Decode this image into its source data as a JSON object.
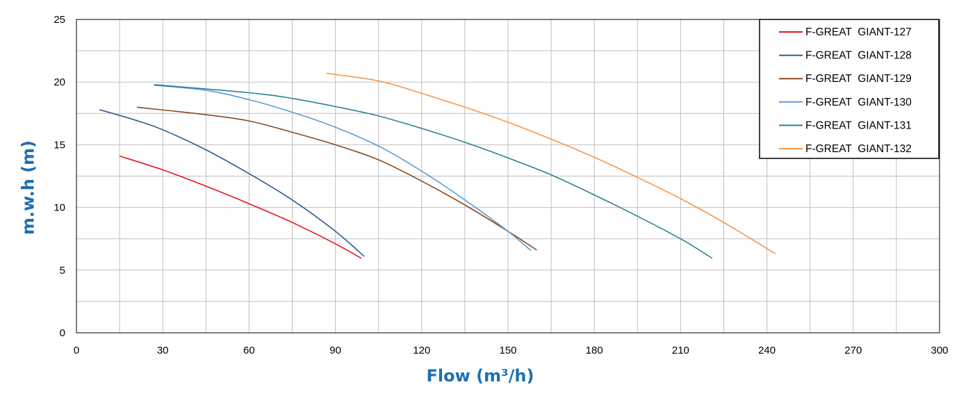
{
  "chart_data": {
    "type": "line",
    "title": "",
    "xlabel": "Flow (m³/h)",
    "ylabel": "m.w.h (m)",
    "xlim": [
      0,
      300
    ],
    "ylim": [
      0,
      25
    ],
    "x_ticks": [
      0,
      30,
      60,
      90,
      120,
      150,
      180,
      210,
      240,
      270,
      300
    ],
    "y_ticks": [
      0,
      5,
      10,
      15,
      20,
      25
    ],
    "x_minor_step": 15,
    "y_minor_step": 2.5,
    "grid": true,
    "legend_position": "top-right",
    "axis_title_color": "#1F6FB2",
    "series": [
      {
        "name": "F-GREAT  GIANT-127",
        "color": "#E8141B",
        "points": [
          [
            15,
            14.1
          ],
          [
            30,
            13.0
          ],
          [
            45,
            11.7
          ],
          [
            60,
            10.3
          ],
          [
            75,
            8.8
          ],
          [
            90,
            7.1
          ],
          [
            99,
            5.95
          ]
        ]
      },
      {
        "name": "F-GREAT  GIANT-128",
        "color": "#2F5A8C",
        "points": [
          [
            8,
            17.8
          ],
          [
            20,
            17.0
          ],
          [
            30,
            16.2
          ],
          [
            45,
            14.6
          ],
          [
            60,
            12.7
          ],
          [
            75,
            10.6
          ],
          [
            90,
            8.1
          ],
          [
            100,
            6.1
          ]
        ]
      },
      {
        "name": "F-GREAT  GIANT-129",
        "color": "#8A4A1E",
        "points": [
          [
            21,
            18.0
          ],
          [
            45,
            17.4
          ],
          [
            60,
            16.9
          ],
          [
            75,
            16.0
          ],
          [
            90,
            15.0
          ],
          [
            105,
            13.8
          ],
          [
            120,
            12.1
          ],
          [
            135,
            10.2
          ],
          [
            150,
            8.1
          ],
          [
            160,
            6.6
          ]
        ]
      },
      {
        "name": "F-GREAT  GIANT-130",
        "color": "#5B9BD5",
        "points": [
          [
            27,
            19.75
          ],
          [
            45,
            19.35
          ],
          [
            60,
            18.6
          ],
          [
            75,
            17.6
          ],
          [
            90,
            16.4
          ],
          [
            105,
            14.9
          ],
          [
            120,
            12.9
          ],
          [
            135,
            10.6
          ],
          [
            150,
            8.1
          ],
          [
            158,
            6.55
          ]
        ]
      },
      {
        "name": "F-GREAT  GIANT-131",
        "color": "#2C8096",
        "points": [
          [
            27,
            19.8
          ],
          [
            60,
            19.15
          ],
          [
            75,
            18.7
          ],
          [
            90,
            18.05
          ],
          [
            105,
            17.3
          ],
          [
            120,
            16.3
          ],
          [
            135,
            15.2
          ],
          [
            150,
            13.95
          ],
          [
            165,
            12.6
          ],
          [
            180,
            11.0
          ],
          [
            195,
            9.3
          ],
          [
            210,
            7.5
          ],
          [
            221,
            5.95
          ]
        ]
      },
      {
        "name": "F-GREAT  GIANT-132",
        "color": "#F79646",
        "points": [
          [
            87,
            20.7
          ],
          [
            105,
            20.1
          ],
          [
            120,
            19.1
          ],
          [
            135,
            18.0
          ],
          [
            150,
            16.8
          ],
          [
            165,
            15.45
          ],
          [
            180,
            14.0
          ],
          [
            195,
            12.4
          ],
          [
            210,
            10.7
          ],
          [
            225,
            8.8
          ],
          [
            243,
            6.3
          ]
        ]
      }
    ]
  }
}
